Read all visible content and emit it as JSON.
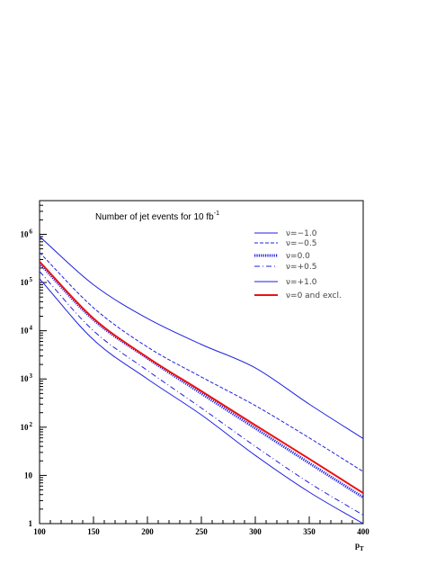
{
  "chart_data": {
    "type": "line",
    "title": "Number of jet events for 10 fb",
    "title_superscript": "-1",
    "xlabel": "p",
    "xlabel_subscript": "T",
    "ylabel": "",
    "xlim": [
      100,
      400
    ],
    "ylim": [
      1,
      5000000
    ],
    "yscale": "log",
    "legend_position": "top-right",
    "x_ticks": [
      "100",
      "150",
      "200",
      "250",
      "300",
      "350",
      "400"
    ],
    "y_ticks": [
      {
        "value": 1,
        "base": "1",
        "exp": ""
      },
      {
        "value": 10,
        "base": "10",
        "exp": ""
      },
      {
        "value": 100,
        "base": "10",
        "exp": "2"
      },
      {
        "value": 1000,
        "base": "10",
        "exp": "3"
      },
      {
        "value": 10000,
        "base": "10",
        "exp": "4"
      },
      {
        "value": 100000,
        "base": "10",
        "exp": "5"
      },
      {
        "value": 1000000,
        "base": "10",
        "exp": "6"
      }
    ],
    "series": [
      {
        "name": "ν=−1.0",
        "style": "solid",
        "color": "#1f1fe0",
        "width": 1,
        "x": [
          100,
          150,
          200,
          250,
          300,
          350,
          400
        ],
        "values": [
          900000,
          90000,
          18000,
          5200,
          1700,
          300,
          58
        ]
      },
      {
        "name": "ν=−0.5",
        "style": "dashed",
        "color": "#1f1fe0",
        "width": 1,
        "x": [
          100,
          150,
          200,
          250,
          300,
          350,
          400
        ],
        "values": [
          420000,
          30000,
          4600,
          1100,
          280,
          60,
          12
        ]
      },
      {
        "name": "ν=0.0",
        "style": "dotted",
        "color": "#1f1fe0",
        "width": 3,
        "x": [
          100,
          150,
          200,
          250,
          300,
          350,
          400
        ],
        "values": [
          250000,
          17000,
          2700,
          500,
          95,
          18,
          3.5
        ]
      },
      {
        "name": "ν=+0.5",
        "style": "dashdot",
        "color": "#1f1fe0",
        "width": 1,
        "x": [
          100,
          150,
          200,
          250,
          300,
          350,
          400
        ],
        "values": [
          170000,
          10000,
          1500,
          250,
          40,
          7,
          1.5
        ]
      },
      {
        "name": "ν=+1.0",
        "style": "solid",
        "color": "#1f1fe0",
        "width": 1,
        "x": [
          100,
          150,
          200,
          250,
          300,
          350,
          400
        ],
        "values": [
          120000,
          6500,
          1000,
          180,
          26,
          4.5,
          1
        ]
      },
      {
        "name": "ν=0 and excl.",
        "style": "solid",
        "color": "#ee1111",
        "width": 2,
        "x": [
          100,
          150,
          200,
          250,
          300,
          350,
          400
        ],
        "values": [
          270000,
          18000,
          2800,
          560,
          110,
          22,
          4.3
        ]
      }
    ]
  }
}
